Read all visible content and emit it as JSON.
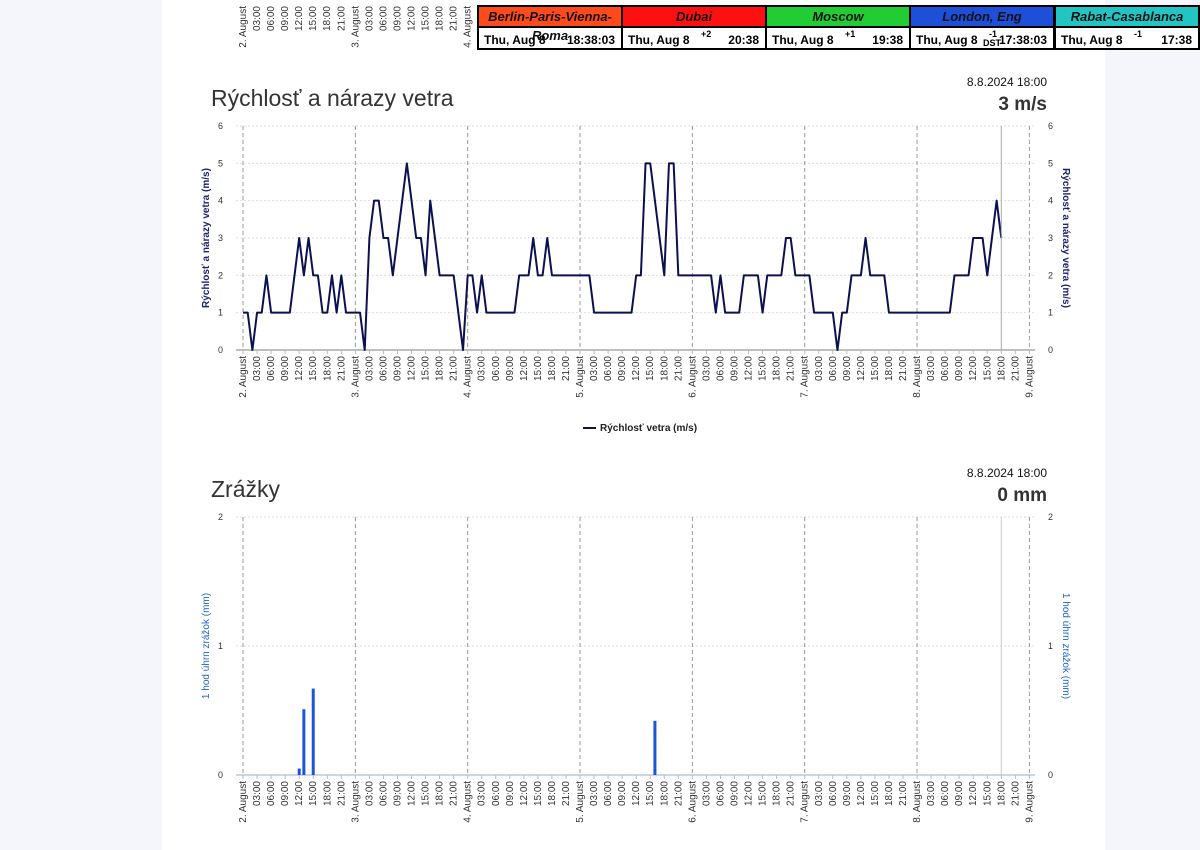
{
  "clipped_axis_labels": [
    "2. August",
    "03:00",
    "06:00",
    "09:00",
    "12:00",
    "15:00",
    "18:00",
    "21:00",
    "3. August",
    "03:00",
    "06:00",
    "09:00",
    "12:00",
    "15:00",
    "18:00",
    "21:00",
    "4. August"
  ],
  "world_clock": [
    {
      "city": "Berlin-Paris-Vienna-Roma",
      "color": "#ff4a1c",
      "date": "Thu, Aug 8",
      "offset": null,
      "time": "18:38:03"
    },
    {
      "city": "Dubai",
      "color": "#ff1010",
      "date": "Thu, Aug 8",
      "offset": "+2",
      "time": "20:38"
    },
    {
      "city": "Moscow",
      "color": "#22cc33",
      "date": "Thu, Aug 8",
      "offset": "+1",
      "time": "19:38"
    },
    {
      "city": "London, Eng",
      "color": "#1e4fd8",
      "date": "Thu, Aug 8",
      "offset": "-1",
      "note": "DST",
      "time": "17:38:03"
    },
    {
      "city": "Rabat-Casablanca",
      "color": "#22c4c4",
      "date": "Thu, Aug 8",
      "offset": "-1",
      "time": "17:38"
    }
  ],
  "chart_data": [
    {
      "type": "line",
      "title": "Rýchlosť a nárazy vetra",
      "title_color": "#1c2470",
      "timestamp": "8.8.2024 18:00",
      "current": "3 m/s",
      "y_label": "Rýchlosť a nárazy vetra (m/s)",
      "x": [
        0,
        1,
        2,
        3,
        4,
        5,
        6,
        7,
        8,
        9,
        10,
        11,
        12,
        13,
        14,
        15,
        16,
        17,
        18,
        19,
        20,
        21,
        22,
        23,
        24,
        25,
        26,
        27,
        28,
        29,
        30,
        31,
        32,
        33,
        34,
        35,
        36,
        37,
        38,
        39,
        40,
        41,
        42,
        43,
        44,
        45,
        46,
        47,
        48,
        49,
        50,
        51,
        52,
        53,
        54,
        55,
        56,
        57,
        58,
        59,
        60,
        61,
        62,
        63,
        64,
        65,
        66,
        67,
        68,
        69,
        70,
        71,
        72,
        73,
        74,
        75,
        76,
        77,
        78,
        79,
        80,
        81,
        82,
        83,
        84,
        85,
        86,
        87,
        88,
        89,
        90,
        91,
        92,
        93,
        94,
        95,
        96,
        97,
        98,
        99,
        100,
        101,
        102,
        103,
        104,
        105,
        106,
        107,
        108,
        109,
        110,
        111,
        112,
        113,
        114,
        115,
        116,
        117,
        118,
        119,
        120,
        121,
        122,
        123,
        124,
        125,
        126,
        127,
        128,
        129,
        130,
        131,
        132,
        133,
        134,
        135,
        136,
        137,
        138,
        139,
        140,
        141,
        142,
        143,
        144,
        145,
        146,
        147,
        148,
        149,
        150,
        151,
        152,
        153,
        154,
        155,
        156,
        157,
        158,
        159,
        160,
        161,
        162
      ],
      "series": [
        {
          "name": "Rýchlosť vetra (m/s)",
          "color": "#0b1050",
          "values": [
            1,
            1,
            0,
            1,
            1,
            2,
            1,
            1,
            1,
            1,
            1,
            2,
            3,
            2,
            3,
            2,
            2,
            1,
            1,
            2,
            1,
            2,
            1,
            1,
            1,
            1,
            0,
            3,
            4,
            4,
            3,
            3,
            2,
            3,
            4,
            5,
            4,
            3,
            3,
            2,
            4,
            3,
            2,
            2,
            2,
            2,
            1,
            0,
            2,
            2,
            1,
            2,
            1,
            1,
            1,
            1,
            1,
            1,
            1,
            2,
            2,
            2,
            3,
            2,
            2,
            3,
            2,
            2,
            2,
            2,
            2,
            2,
            2,
            2,
            2,
            1,
            1,
            1,
            1,
            1,
            1,
            1,
            1,
            1,
            2,
            2,
            5,
            5,
            4,
            3,
            2,
            5,
            5,
            2,
            2,
            2,
            2,
            2,
            2,
            2,
            2,
            1,
            2,
            1,
            1,
            1,
            1,
            2,
            2,
            2,
            2,
            1,
            2,
            2,
            2,
            2,
            3,
            3,
            2,
            2,
            2,
            2,
            1,
            1,
            1,
            1,
            1,
            0,
            1,
            1,
            2,
            2,
            2,
            3,
            2,
            2,
            2,
            2,
            1,
            1,
            1,
            1,
            1,
            1,
            1,
            1,
            1,
            1,
            1,
            1,
            1,
            1,
            2,
            2,
            2,
            2,
            3,
            3,
            3,
            2,
            3,
            4,
            3
          ]
        }
      ],
      "xlim": [
        -1.5,
        169.2
      ],
      "ylim": [
        0,
        6
      ],
      "yticks": [
        0,
        1,
        2,
        3,
        4,
        5,
        6
      ],
      "grid": true,
      "xticks": [
        {
          "value": 0,
          "label": "2. August"
        },
        {
          "value": 3,
          "label": "03:00"
        },
        {
          "value": 6,
          "label": "06:00"
        },
        {
          "value": 9,
          "label": "09:00"
        },
        {
          "value": 12,
          "label": "12:00"
        },
        {
          "value": 15,
          "label": "15:00"
        },
        {
          "value": 18,
          "label": "18:00"
        },
        {
          "value": 21,
          "label": "21:00"
        },
        {
          "value": 24,
          "label": "3. August"
        },
        {
          "value": 27,
          "label": "03:00"
        },
        {
          "value": 30,
          "label": "06:00"
        },
        {
          "value": 33,
          "label": "09:00"
        },
        {
          "value": 36,
          "label": "12:00"
        },
        {
          "value": 39,
          "label": "15:00"
        },
        {
          "value": 42,
          "label": "18:00"
        },
        {
          "value": 45,
          "label": "21:00"
        },
        {
          "value": 48,
          "label": "4. August"
        },
        {
          "value": 51,
          "label": "03:00"
        },
        {
          "value": 54,
          "label": "06:00"
        },
        {
          "value": 57,
          "label": "09:00"
        },
        {
          "value": 60,
          "label": "12:00"
        },
        {
          "value": 63,
          "label": "15:00"
        },
        {
          "value": 66,
          "label": "18:00"
        },
        {
          "value": 69,
          "label": "21:00"
        },
        {
          "value": 72,
          "label": "5. August"
        },
        {
          "value": 75,
          "label": "03:00"
        },
        {
          "value": 78,
          "label": "06:00"
        },
        {
          "value": 81,
          "label": "09:00"
        },
        {
          "value": 84,
          "label": "12:00"
        },
        {
          "value": 87,
          "label": "15:00"
        },
        {
          "value": 90,
          "label": "18:00"
        },
        {
          "value": 93,
          "label": "21:00"
        },
        {
          "value": 96,
          "label": "6. August"
        },
        {
          "value": 99,
          "label": "03:00"
        },
        {
          "value": 102,
          "label": "06:00"
        },
        {
          "value": 105,
          "label": "09:00"
        },
        {
          "value": 108,
          "label": "12:00"
        },
        {
          "value": 111,
          "label": "15:00"
        },
        {
          "value": 114,
          "label": "18:00"
        },
        {
          "value": 117,
          "label": "21:00"
        },
        {
          "value": 120,
          "label": "7. August"
        },
        {
          "value": 123,
          "label": "03:00"
        },
        {
          "value": 126,
          "label": "06:00"
        },
        {
          "value": 129,
          "label": "09:00"
        },
        {
          "value": 132,
          "label": "12:00"
        },
        {
          "value": 135,
          "label": "15:00"
        },
        {
          "value": 138,
          "label": "18:00"
        },
        {
          "value": 141,
          "label": "21:00"
        },
        {
          "value": 144,
          "label": "8. August"
        },
        {
          "value": 147,
          "label": "03:00"
        },
        {
          "value": 150,
          "label": "06:00"
        },
        {
          "value": 153,
          "label": "09:00"
        },
        {
          "value": 156,
          "label": "12:00"
        },
        {
          "value": 159,
          "label": "15:00"
        },
        {
          "value": 162,
          "label": "18:00"
        },
        {
          "value": 165,
          "label": "21:00"
        },
        {
          "value": 168,
          "label": "9. August"
        }
      ]
    },
    {
      "type": "bar",
      "title": "Zrážky",
      "title_color": "#1e64c8",
      "timestamp": "8.8.2024 18:00",
      "current": "0 mm",
      "y_label": "1 hod úhrn zrážok (mm)",
      "color": "#1a56d6",
      "x": [
        12,
        13,
        15,
        88
      ],
      "values": [
        0.05,
        0.51,
        0.67,
        0.42
      ],
      "xlim": [
        -1.5,
        169.2
      ],
      "ylim": [
        0,
        2
      ],
      "yticks": [
        0,
        1,
        2
      ],
      "grid": true,
      "xticks": [
        {
          "value": 0,
          "label": "2. August"
        },
        {
          "value": 3,
          "label": "03:00"
        },
        {
          "value": 6,
          "label": "06:00"
        },
        {
          "value": 9,
          "label": "09:00"
        },
        {
          "value": 12,
          "label": "12:00"
        },
        {
          "value": 15,
          "label": "15:00"
        },
        {
          "value": 18,
          "label": "18:00"
        },
        {
          "value": 21,
          "label": "21:00"
        },
        {
          "value": 24,
          "label": "3. August"
        },
        {
          "value": 27,
          "label": "03:00"
        },
        {
          "value": 30,
          "label": "06:00"
        },
        {
          "value": 33,
          "label": "09:00"
        },
        {
          "value": 36,
          "label": "12:00"
        },
        {
          "value": 39,
          "label": "15:00"
        },
        {
          "value": 42,
          "label": "18:00"
        },
        {
          "value": 45,
          "label": "21:00"
        },
        {
          "value": 48,
          "label": "4. August"
        },
        {
          "value": 51,
          "label": "03:00"
        },
        {
          "value": 54,
          "label": "06:00"
        },
        {
          "value": 57,
          "label": "09:00"
        },
        {
          "value": 60,
          "label": "12:00"
        },
        {
          "value": 63,
          "label": "15:00"
        },
        {
          "value": 66,
          "label": "18:00"
        },
        {
          "value": 69,
          "label": "21:00"
        },
        {
          "value": 72,
          "label": "5. August"
        },
        {
          "value": 75,
          "label": "03:00"
        },
        {
          "value": 78,
          "label": "06:00"
        },
        {
          "value": 81,
          "label": "09:00"
        },
        {
          "value": 84,
          "label": "12:00"
        },
        {
          "value": 87,
          "label": "15:00"
        },
        {
          "value": 90,
          "label": "18:00"
        },
        {
          "value": 93,
          "label": "21:00"
        },
        {
          "value": 96,
          "label": "6. August"
        },
        {
          "value": 99,
          "label": "03:00"
        },
        {
          "value": 102,
          "label": "06:00"
        },
        {
          "value": 105,
          "label": "09:00"
        },
        {
          "value": 108,
          "label": "12:00"
        },
        {
          "value": 111,
          "label": "15:00"
        },
        {
          "value": 114,
          "label": "18:00"
        },
        {
          "value": 117,
          "label": "21:00"
        },
        {
          "value": 120,
          "label": "7. August"
        },
        {
          "value": 123,
          "label": "03:00"
        },
        {
          "value": 126,
          "label": "06:00"
        },
        {
          "value": 129,
          "label": "09:00"
        },
        {
          "value": 132,
          "label": "12:00"
        },
        {
          "value": 135,
          "label": "15:00"
        },
        {
          "value": 138,
          "label": "18:00"
        },
        {
          "value": 141,
          "label": "21:00"
        },
        {
          "value": 144,
          "label": "8. August"
        },
        {
          "value": 147,
          "label": "03:00"
        },
        {
          "value": 150,
          "label": "06:00"
        },
        {
          "value": 153,
          "label": "09:00"
        },
        {
          "value": 156,
          "label": "12:00"
        },
        {
          "value": 159,
          "label": "15:00"
        },
        {
          "value": 162,
          "label": "18:00"
        },
        {
          "value": 165,
          "label": "21:00"
        },
        {
          "value": 168,
          "label": "9. August"
        }
      ]
    }
  ]
}
